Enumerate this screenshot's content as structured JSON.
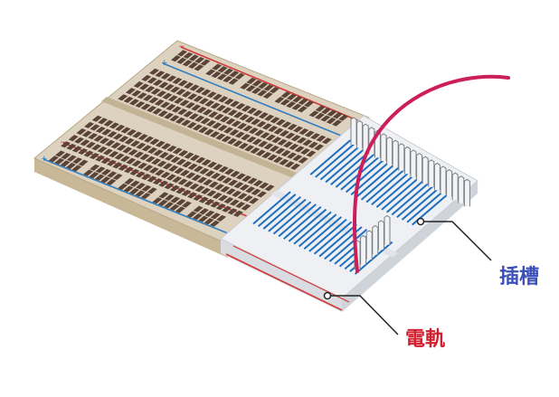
{
  "labels": {
    "slot": "插槽",
    "rail": "電軌"
  },
  "colors": {
    "board": "#ddd2bf",
    "board_side": "#cbbd9f",
    "board_edge": "#b9a886",
    "hole": "#5a4337",
    "rail_red": "#d23a3a",
    "rail_blue": "#2f7fc1",
    "transparent_top": "#eef0f3",
    "transparent_side": "#d9dde2",
    "strip_blue": "#1f6fbf",
    "wire": "#cc1f5a",
    "slot_label": "#3a4fb8",
    "rail_label": "#d21f2f",
    "leader": "#222222"
  },
  "icons": {
    "plus_sign": "plus-icon",
    "minus_sign": "minus-icon"
  }
}
